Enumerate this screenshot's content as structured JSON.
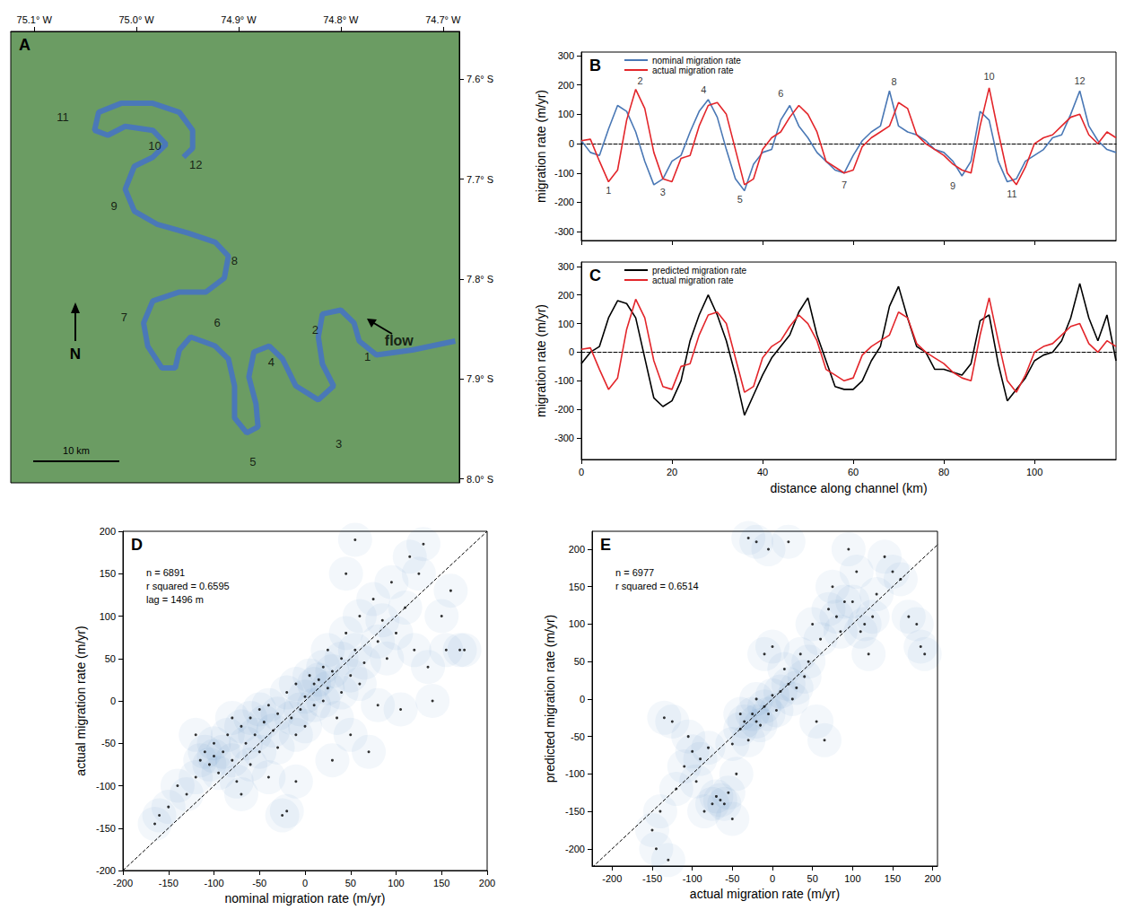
{
  "chart_data": [
    {
      "panel": "A",
      "type": "map",
      "color": "#4a78b8",
      "xlim": [
        -75.123,
        -74.684
      ],
      "ylim": [
        -8.004,
        -7.552
      ],
      "xticks": [
        {
          "value": -75.1,
          "label": "75.1° W"
        },
        {
          "value": -75.0,
          "label": "75.0° W"
        },
        {
          "value": -74.9,
          "label": "74.9° W"
        },
        {
          "value": -74.8,
          "label": "74.8° W"
        },
        {
          "value": -74.7,
          "label": "74.7° W"
        }
      ],
      "yticks": [
        {
          "value": -7.6,
          "label": "7.6° S"
        },
        {
          "value": -7.7,
          "label": "7.7° S"
        },
        {
          "value": -7.8,
          "label": "7.8° S"
        },
        {
          "value": -7.9,
          "label": "7.9° S"
        },
        {
          "value": -8.0,
          "label": "8.0° S"
        }
      ],
      "river": {
        "x": [
          -74.688,
          -74.73,
          -74.765,
          -74.782,
          -74.787,
          -74.8,
          -74.818,
          -74.822,
          -74.818,
          -74.807,
          -74.822,
          -74.844,
          -74.857,
          -74.87,
          -74.885,
          -74.89,
          -74.883,
          -74.881,
          -74.892,
          -74.904,
          -74.904,
          -74.91,
          -74.923,
          -74.936,
          -74.947,
          -74.958,
          -74.962,
          -74.975,
          -74.989,
          -74.993,
          -74.984,
          -74.958,
          -74.932,
          -74.914,
          -74.91,
          -74.923,
          -74.949,
          -74.98,
          -75.002,
          -75.011,
          -75.002,
          -74.984,
          -74.971,
          -74.984,
          -75.011,
          -75.028,
          -75.041,
          -75.037,
          -75.015,
          -74.984,
          -74.958,
          -74.945,
          -74.945,
          -74.954
        ],
        "y": [
          -7.862,
          -7.871,
          -7.876,
          -7.862,
          -7.844,
          -7.831,
          -7.835,
          -7.858,
          -7.885,
          -7.907,
          -7.921,
          -7.907,
          -7.88,
          -7.867,
          -7.873,
          -7.898,
          -7.925,
          -7.948,
          -7.954,
          -7.939,
          -7.907,
          -7.88,
          -7.867,
          -7.862,
          -7.858,
          -7.871,
          -7.889,
          -7.889,
          -7.867,
          -7.844,
          -7.822,
          -7.813,
          -7.813,
          -7.799,
          -7.777,
          -7.763,
          -7.754,
          -7.745,
          -7.732,
          -7.71,
          -7.687,
          -7.678,
          -7.665,
          -7.651,
          -7.647,
          -7.656,
          -7.651,
          -7.633,
          -7.624,
          -7.624,
          -7.633,
          -7.651,
          -7.669,
          -7.678
        ]
      },
      "annotations": [
        {
          "text": "1",
          "x": -74.774,
          "y": -7.878
        },
        {
          "text": "2",
          "x": -74.825,
          "y": -7.851
        },
        {
          "text": "3",
          "x": -74.802,
          "y": -7.965
        },
        {
          "text": "4",
          "x": -74.868,
          "y": -7.883
        },
        {
          "text": "5",
          "x": -74.886,
          "y": -7.983
        },
        {
          "text": "6",
          "x": -74.921,
          "y": -7.844
        },
        {
          "text": "7",
          "x": -75.012,
          "y": -7.838
        },
        {
          "text": "8",
          "x": -74.904,
          "y": -7.782
        },
        {
          "text": "9",
          "x": -75.022,
          "y": -7.727
        },
        {
          "text": "10",
          "x": -74.982,
          "y": -7.667
        },
        {
          "text": "11",
          "x": -75.072,
          "y": -7.638
        },
        {
          "text": "12",
          "x": -74.942,
          "y": -7.685
        }
      ],
      "flow_label": {
        "text": "flow",
        "x": -74.743,
        "y": -7.862
      },
      "north_label": "N",
      "scale_label": "10 km"
    },
    {
      "panel": "B",
      "type": "line",
      "ylabel": "migration rate (m/yr)",
      "tick_labels": "y",
      "legend": "upper left",
      "x": [
        0,
        2,
        4,
        6,
        8,
        10,
        12,
        14,
        16,
        18,
        20,
        22,
        24,
        26,
        28,
        30,
        32,
        34,
        36,
        38,
        40,
        42,
        44,
        46,
        48,
        50,
        52,
        54,
        56,
        58,
        60,
        62,
        64,
        66,
        68,
        70,
        72,
        74,
        76,
        78,
        80,
        82,
        84,
        86,
        88,
        90,
        92,
        94,
        96,
        98,
        100,
        102,
        104,
        106,
        108,
        110,
        112,
        114,
        116,
        118
      ],
      "series": [
        {
          "name": "nominal migration rate",
          "color": "#4a78b5",
          "values": [
            10,
            -30,
            -40,
            50,
            130,
            110,
            40,
            -60,
            -140,
            -120,
            -60,
            -40,
            40,
            110,
            150,
            90,
            -20,
            -120,
            -160,
            -70,
            -30,
            -20,
            80,
            130,
            60,
            20,
            -30,
            -60,
            -90,
            -100,
            -40,
            10,
            40,
            60,
            180,
            60,
            40,
            30,
            10,
            -20,
            -30,
            -60,
            -110,
            -60,
            110,
            80,
            -60,
            -130,
            -120,
            -60,
            -40,
            -20,
            20,
            30,
            100,
            180,
            60,
            10,
            -20,
            -30
          ]
        },
        {
          "name": "actual migration rate",
          "color": "#e3262b",
          "values": [
            10,
            15,
            -60,
            -130,
            -90,
            80,
            185,
            120,
            -30,
            -120,
            -130,
            -50,
            -40,
            60,
            130,
            140,
            100,
            -20,
            -140,
            -120,
            -20,
            20,
            40,
            90,
            130,
            100,
            40,
            -60,
            -80,
            -100,
            -90,
            -10,
            20,
            40,
            60,
            140,
            120,
            30,
            0,
            -20,
            -40,
            -70,
            -90,
            -100,
            60,
            190,
            40,
            -100,
            -140,
            -80,
            0,
            20,
            30,
            60,
            90,
            100,
            30,
            0,
            40,
            20
          ]
        }
      ],
      "xlim": [
        0,
        118
      ],
      "ylim": [
        -330,
        312
      ],
      "xticks": [
        0,
        20,
        40,
        60,
        80,
        100
      ],
      "yticks": [
        -300,
        -200,
        -100,
        0,
        100,
        200,
        300
      ],
      "annotations": [
        {
          "text": "1",
          "x": 6,
          "y": -160
        },
        {
          "text": "2",
          "x": 13,
          "y": 215
        },
        {
          "text": "3",
          "x": 18,
          "y": -165
        },
        {
          "text": "4",
          "x": 27,
          "y": 185
        },
        {
          "text": "5",
          "x": 35,
          "y": -190
        },
        {
          "text": "6",
          "x": 44,
          "y": 170
        },
        {
          "text": "7",
          "x": 58,
          "y": -140
        },
        {
          "text": "8",
          "x": 69,
          "y": 210
        },
        {
          "text": "9",
          "x": 82,
          "y": -145
        },
        {
          "text": "10",
          "x": 90,
          "y": 230
        },
        {
          "text": "11",
          "x": 95,
          "y": -170
        },
        {
          "text": "12",
          "x": 110,
          "y": 215
        }
      ]
    },
    {
      "panel": "C",
      "type": "line",
      "xlabel": "distance along channel (km)",
      "ylabel": "migration rate (m/yr)",
      "legend": "upper left",
      "x": [
        0,
        2,
        4,
        6,
        8,
        10,
        12,
        14,
        16,
        18,
        20,
        22,
        24,
        26,
        28,
        30,
        32,
        34,
        36,
        38,
        40,
        42,
        44,
        46,
        48,
        50,
        52,
        54,
        56,
        58,
        60,
        62,
        64,
        66,
        68,
        70,
        72,
        74,
        76,
        78,
        80,
        82,
        84,
        86,
        88,
        90,
        92,
        94,
        96,
        98,
        100,
        102,
        104,
        106,
        108,
        110,
        112,
        114,
        116,
        118
      ],
      "series": [
        {
          "name": "predicted migration rate",
          "color": "#000000",
          "values": [
            -40,
            0,
            20,
            120,
            180,
            170,
            120,
            -20,
            -160,
            -190,
            -170,
            -100,
            40,
            130,
            200,
            130,
            40,
            -80,
            -220,
            -150,
            -80,
            -20,
            20,
            60,
            140,
            190,
            60,
            -30,
            -120,
            -130,
            -130,
            -100,
            -30,
            20,
            160,
            230,
            120,
            20,
            0,
            -60,
            -60,
            -70,
            -80,
            -40,
            110,
            130,
            -40,
            -170,
            -130,
            -90,
            -30,
            -10,
            0,
            40,
            120,
            240,
            120,
            40,
            130,
            -30
          ]
        },
        {
          "name": "actual migration rate",
          "color": "#e3262b",
          "values": [
            10,
            15,
            -60,
            -130,
            -90,
            80,
            185,
            120,
            -30,
            -120,
            -130,
            -50,
            -40,
            60,
            130,
            140,
            100,
            -20,
            -140,
            -120,
            -20,
            20,
            40,
            90,
            130,
            100,
            40,
            -60,
            -80,
            -100,
            -90,
            -10,
            20,
            40,
            60,
            140,
            120,
            30,
            0,
            -20,
            -40,
            -70,
            -90,
            -100,
            60,
            190,
            40,
            -100,
            -140,
            -80,
            0,
            20,
            30,
            60,
            90,
            100,
            30,
            0,
            40,
            20
          ]
        }
      ],
      "xlim": [
        0,
        118
      ],
      "ylim": [
        -375,
        315
      ],
      "xticks": [
        0,
        20,
        40,
        60,
        80,
        100
      ],
      "yticks": [
        -300,
        -200,
        -100,
        0,
        100,
        200,
        300
      ]
    },
    {
      "panel": "D",
      "type": "scatter",
      "color": "#000000",
      "xlabel": "nominal migration rate (m/yr)",
      "ylabel": "actual migration rate (m/yr)",
      "annotations": [
        "n = 6891",
        "r squared = 0.6595",
        "lag = 1496 m"
      ],
      "x": [
        -165,
        -160,
        -150,
        -140,
        -130,
        -120,
        -115,
        -110,
        -105,
        -100,
        -100,
        -95,
        -90,
        -85,
        -80,
        -75,
        -70,
        -70,
        -65,
        -60,
        -60,
        -55,
        -50,
        -50,
        -45,
        -40,
        -40,
        -35,
        -30,
        -30,
        -25,
        -20,
        -20,
        -15,
        -10,
        -10,
        -5,
        0,
        0,
        5,
        10,
        10,
        15,
        20,
        20,
        25,
        25,
        30,
        35,
        40,
        40,
        45,
        50,
        50,
        55,
        60,
        60,
        65,
        70,
        75,
        80,
        85,
        90,
        95,
        100,
        105,
        110,
        115,
        120,
        125,
        130,
        135,
        140,
        150,
        155,
        160,
        170,
        175,
        -10,
        30,
        45,
        55,
        -80,
        -120,
        80
      ],
      "y": [
        -145,
        -135,
        -125,
        -100,
        -110,
        -90,
        -70,
        -60,
        -75,
        -50,
        -65,
        -85,
        -60,
        -40,
        -70,
        -95,
        -30,
        -110,
        -50,
        -20,
        -75,
        -40,
        -10,
        -60,
        -25,
        -90,
        -5,
        -35,
        -15,
        -55,
        -135,
        -130,
        10,
        -20,
        -40,
        20,
        -10,
        5,
        -30,
        30,
        20,
        -5,
        25,
        40,
        0,
        15,
        60,
        35,
        -20,
        50,
        10,
        80,
        30,
        -40,
        60,
        100,
        20,
        45,
        -60,
        120,
        70,
        95,
        50,
        140,
        80,
        -10,
        110,
        170,
        60,
        150,
        185,
        40,
        0,
        100,
        60,
        130,
        60,
        60,
        -95,
        -70,
        150,
        190,
        -20,
        -40,
        -5
      ],
      "xlim": [
        -200,
        200
      ],
      "ylim": [
        -200,
        200
      ],
      "xticks": [
        -200,
        -150,
        -100,
        -50,
        0,
        50,
        100,
        150,
        200
      ],
      "yticks": [
        -200,
        -150,
        -100,
        -50,
        0,
        50,
        100,
        150,
        200
      ]
    },
    {
      "panel": "E",
      "type": "scatter",
      "color": "#000000",
      "xlabel": "actual migration rate (m/yr)",
      "ylabel": "predicted migration rate (m/yr)",
      "annotations": [
        "n = 6977",
        "r squared = 0.6514"
      ],
      "x": [
        -150,
        -145,
        -140,
        -135,
        -130,
        -125,
        -120,
        -110,
        -105,
        -100,
        -95,
        -90,
        -85,
        -80,
        -75,
        -70,
        -65,
        -60,
        -55,
        -50,
        -50,
        -45,
        -40,
        -40,
        -35,
        -30,
        -25,
        -20,
        -20,
        -15,
        -10,
        -10,
        -5,
        0,
        0,
        5,
        10,
        15,
        20,
        25,
        30,
        35,
        40,
        45,
        50,
        55,
        60,
        65,
        70,
        75,
        80,
        85,
        90,
        95,
        100,
        105,
        110,
        115,
        120,
        125,
        130,
        140,
        150,
        160,
        170,
        180,
        185,
        190,
        -30,
        -20,
        -5,
        20
      ],
      "y": [
        -175,
        -200,
        -150,
        -25,
        -215,
        -30,
        -120,
        -90,
        -50,
        -70,
        -110,
        -80,
        -150,
        -65,
        -140,
        -130,
        -135,
        -140,
        -125,
        -160,
        -60,
        -100,
        -20,
        -40,
        -30,
        -55,
        -20,
        -30,
        0,
        -35,
        -10,
        60,
        -20,
        5,
        70,
        -15,
        10,
        40,
        20,
        0,
        15,
        60,
        30,
        50,
        100,
        -30,
        80,
        -55,
        120,
        150,
        110,
        90,
        130,
        200,
        130,
        170,
        90,
        100,
        60,
        110,
        140,
        190,
        170,
        160,
        110,
        100,
        70,
        60,
        215,
        210,
        200,
        210
      ],
      "xlim": [
        -225,
        206
      ],
      "ylim": [
        -223,
        224
      ],
      "xticks": [
        -200,
        -150,
        -100,
        -50,
        0,
        50,
        100,
        150,
        200
      ],
      "yticks": [
        -200,
        -150,
        -100,
        -50,
        0,
        50,
        100,
        150,
        200
      ]
    }
  ]
}
